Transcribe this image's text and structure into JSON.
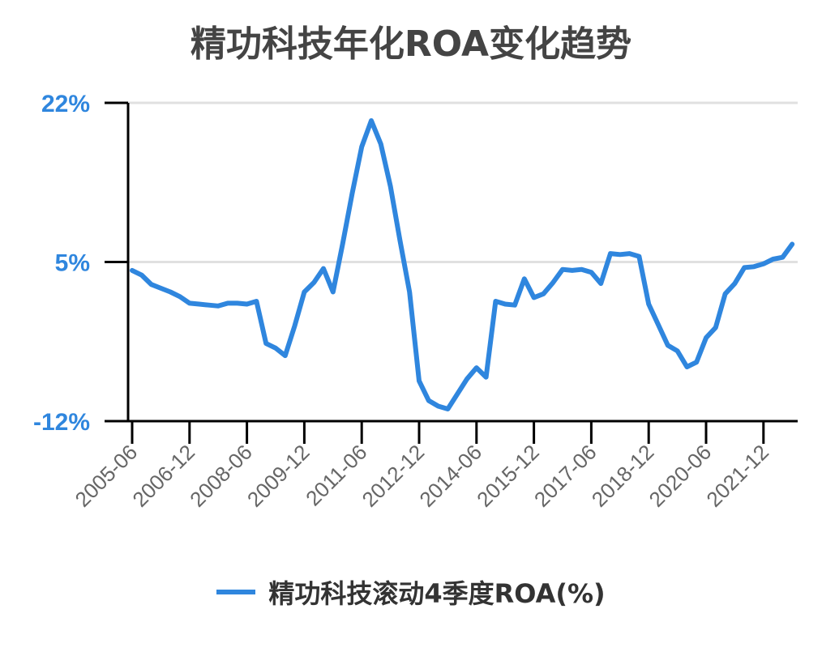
{
  "title": "精功科技年化ROA变化趋势",
  "legend": {
    "label": "精功科技滚动4季度ROA(%)",
    "color": "#2f86de"
  },
  "colors": {
    "line": "#2f86de",
    "axis": "#000000",
    "grid": "#e0e0e0",
    "y_tick_text": "#2f86de",
    "x_tick_text": "#666666",
    "title": "#444444"
  },
  "y_axis": {
    "ticks": [
      22,
      5,
      -12
    ],
    "tick_labels": [
      "22%",
      "5%",
      "-12%"
    ]
  },
  "x_axis": {
    "tick_labels": [
      "2005-06",
      "2006-12",
      "2008-06",
      "2009-12",
      "2011-06",
      "2012-12",
      "2014-06",
      "2015-12",
      "2017-06",
      "2018-12",
      "2020-06",
      "2021-12"
    ]
  },
  "chart_data": {
    "type": "line",
    "title": "精功科技年化ROA变化趋势",
    "xlabel": "",
    "ylabel": "",
    "ylim": [
      -12,
      22
    ],
    "grid": "horizontal",
    "legend_position": "bottom",
    "x_tick_labels": [
      "2005-06",
      "2006-12",
      "2008-06",
      "2009-12",
      "2011-06",
      "2012-12",
      "2014-06",
      "2015-12",
      "2017-06",
      "2018-12",
      "2020-06",
      "2021-12"
    ],
    "x": [
      "2005-06",
      "2005-09",
      "2005-12",
      "2006-03",
      "2006-06",
      "2006-09",
      "2006-12",
      "2007-03",
      "2007-06",
      "2007-09",
      "2007-12",
      "2008-03",
      "2008-06",
      "2008-09",
      "2008-12",
      "2009-03",
      "2009-06",
      "2009-09",
      "2009-12",
      "2010-03",
      "2010-06",
      "2010-09",
      "2010-12",
      "2011-03",
      "2011-06",
      "2011-09",
      "2011-12",
      "2012-03",
      "2012-06",
      "2012-09",
      "2012-12",
      "2013-03",
      "2013-06",
      "2013-09",
      "2013-12",
      "2014-03",
      "2014-06",
      "2014-09",
      "2014-12",
      "2015-03",
      "2015-06",
      "2015-09",
      "2015-12",
      "2016-03",
      "2016-06",
      "2016-09",
      "2016-12",
      "2017-03",
      "2017-06",
      "2017-09",
      "2017-12",
      "2018-03",
      "2018-06",
      "2018-09",
      "2018-12",
      "2019-03",
      "2019-06",
      "2019-09",
      "2019-12",
      "2020-03",
      "2020-06",
      "2020-09",
      "2020-12",
      "2021-03",
      "2021-06",
      "2021-09",
      "2021-12",
      "2022-03",
      "2022-06",
      "2022-09"
    ],
    "series": [
      {
        "name": "精功科技滚动4季度ROA(%)",
        "values": [
          4.1,
          3.6,
          2.6,
          2.2,
          1.8,
          1.3,
          0.6,
          0.5,
          0.4,
          0.3,
          0.6,
          0.6,
          0.5,
          0.8,
          -3.7,
          -4.2,
          -5.0,
          -1.8,
          1.8,
          2.8,
          4.3,
          1.8,
          6.9,
          12.3,
          17.3,
          20.1,
          17.6,
          13.1,
          7.3,
          1.8,
          -7.7,
          -9.8,
          -10.4,
          -10.7,
          -9.1,
          -7.5,
          -6.3,
          -7.3,
          0.8,
          0.5,
          0.4,
          3.2,
          1.2,
          1.6,
          2.8,
          4.2,
          4.1,
          4.2,
          3.9,
          2.7,
          5.9,
          5.8,
          5.9,
          5.6,
          0.5,
          -1.7,
          -3.9,
          -4.5,
          -6.2,
          -5.7,
          -3.1,
          -2.0,
          1.6,
          2.7,
          4.4,
          4.5,
          4.8,
          5.3,
          5.5,
          6.9
        ]
      }
    ]
  }
}
